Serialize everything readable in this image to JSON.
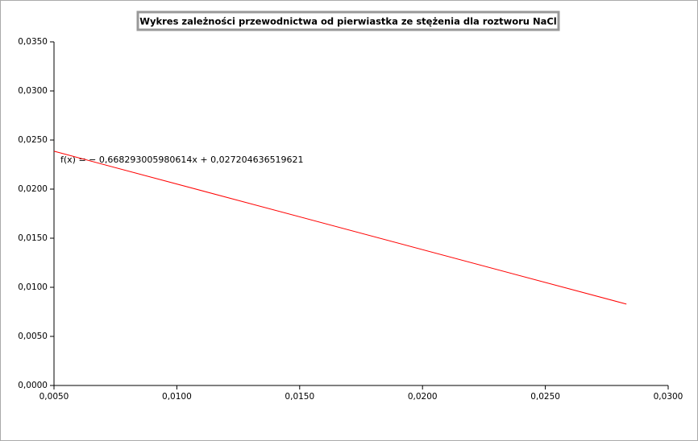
{
  "chart_data": {
    "type": "line",
    "title": "Wykres zależności przewodnictwa od pierwiastka ze stężenia dla roztworu NaCl",
    "annotation": "f(x) = − 0,668293005980614x + 0,027204636519621",
    "x": [
      0.005,
      0.0283
    ],
    "series": [
      {
        "color": "#ff0000",
        "values": [
          0.02386,
          0.00829
        ]
      }
    ],
    "xlim": [
      0.005,
      0.03
    ],
    "ylim": [
      0,
      0.035
    ],
    "xticks": [
      {
        "value": 0.005,
        "label": "0,0050"
      },
      {
        "value": 0.01,
        "label": "0,0100"
      },
      {
        "value": 0.015,
        "label": "0,0150"
      },
      {
        "value": 0.02,
        "label": "0,0200"
      },
      {
        "value": 0.025,
        "label": "0,0250"
      },
      {
        "value": 0.03,
        "label": "0,0300"
      }
    ],
    "yticks": [
      {
        "value": 0,
        "label": "0,0000"
      },
      {
        "value": 0.005,
        "label": "0,0050"
      },
      {
        "value": 0.01,
        "label": "0,0100"
      },
      {
        "value": 0.015,
        "label": "0,0150"
      },
      {
        "value": 0.02,
        "label": "0,0200"
      },
      {
        "value": 0.025,
        "label": "0,0250"
      },
      {
        "value": 0.03,
        "label": "0,0300"
      },
      {
        "value": 0.035,
        "label": "0,0350"
      }
    ],
    "grid": false
  }
}
